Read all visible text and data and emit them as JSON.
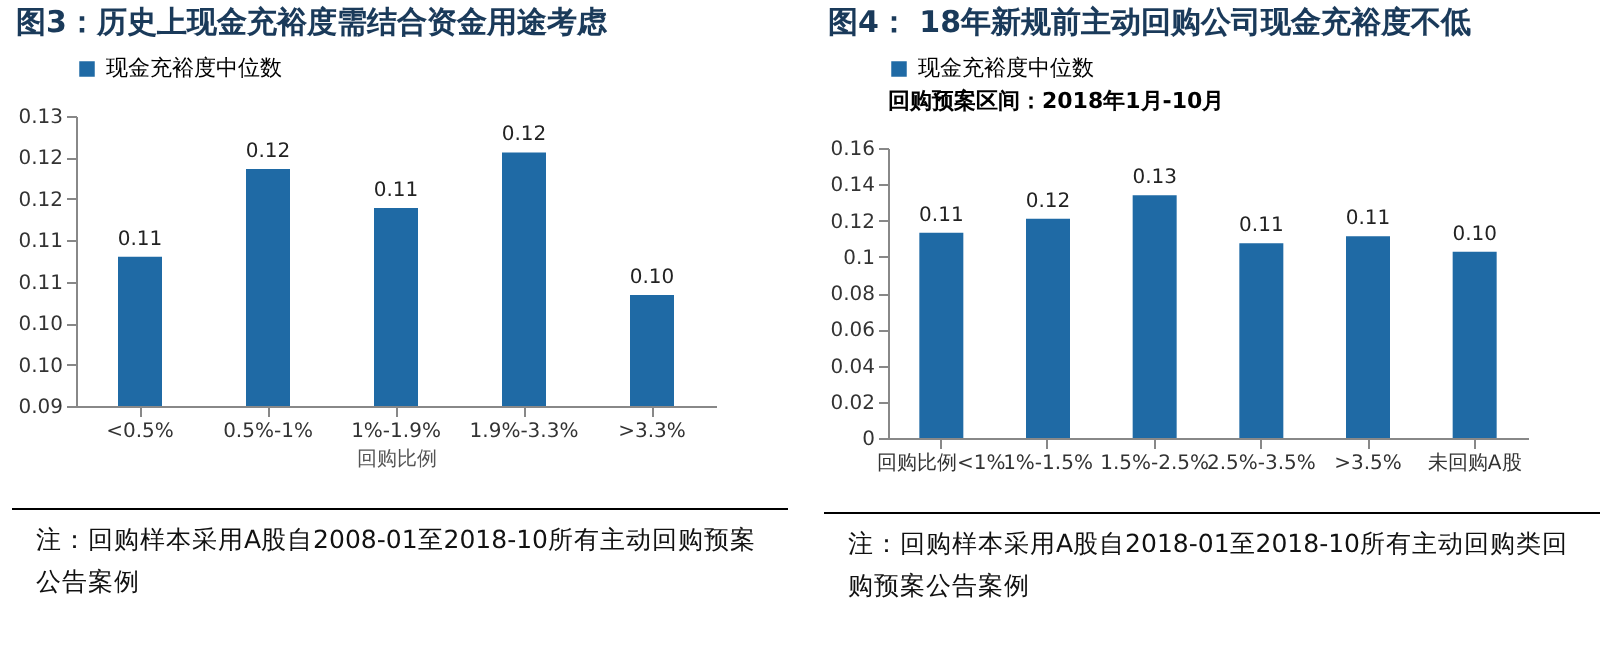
{
  "chart_data": [
    {
      "type": "bar",
      "title": "图3：历史上现金充裕度需结合资金用途考虑",
      "xlabel": "回购比例",
      "categories": [
        "<0.5%",
        "0.5%-1%",
        "1%-1.9%",
        "1.9%-3.3%",
        ">3.3%"
      ],
      "series": [
        {
          "name": "现金充裕度中位数",
          "color": "#1f6aa5",
          "values": [
            0.108,
            0.1186,
            0.1139,
            0.1206,
            0.1034
          ],
          "value_labels": [
            "0.11",
            "0.12",
            "0.11",
            "0.12",
            "0.10"
          ]
        }
      ],
      "ylim": [
        0.09,
        0.125
      ],
      "yticks": [
        {
          "value": 0.09,
          "label": "0.09"
        },
        {
          "value": 0.095,
          "label": "0.10"
        },
        {
          "value": 0.1,
          "label": "0.10"
        },
        {
          "value": 0.105,
          "label": "0.11"
        },
        {
          "value": 0.11,
          "label": "0.11"
        },
        {
          "value": 0.115,
          "label": "0.12"
        },
        {
          "value": 0.12,
          "label": "0.12"
        },
        {
          "value": 0.125,
          "label": "0.13"
        }
      ],
      "grid": false,
      "legend": "top",
      "annotations": [
        "注：回购样本采用A股自2008-01至2018-10所有主动回购预案公告案例"
      ]
    },
    {
      "type": "bar",
      "title": "图4：  18年新规前主动回购公司现金充裕度不低",
      "legend_title": "回购预案区间：2018年1月-10月",
      "categories": [
        "回购比例<1%",
        "1%-1.5%",
        "1.5%-2.5%",
        "2.5%-3.5%",
        ">3.5%",
        "未回购A股"
      ],
      "series": [
        {
          "name": "现金充裕度中位数",
          "color": "#1f6aa5",
          "values": [
            0.1132,
            0.121,
            0.1339,
            0.1074,
            0.1113,
            0.1027
          ],
          "value_labels": [
            "0.11",
            "0.12",
            "0.13",
            "0.11",
            "0.11",
            "0.10"
          ]
        }
      ],
      "ylim": [
        0,
        0.16
      ],
      "yticks": [
        0,
        0.02,
        0.04,
        0.06,
        0.08,
        0.1,
        0.12,
        0.14,
        0.16
      ],
      "grid": false,
      "legend": "top",
      "annotations": [
        "注：回购样本采用A股自2018-01至2018-10所有主动回购类回购预案公告案例"
      ]
    }
  ]
}
